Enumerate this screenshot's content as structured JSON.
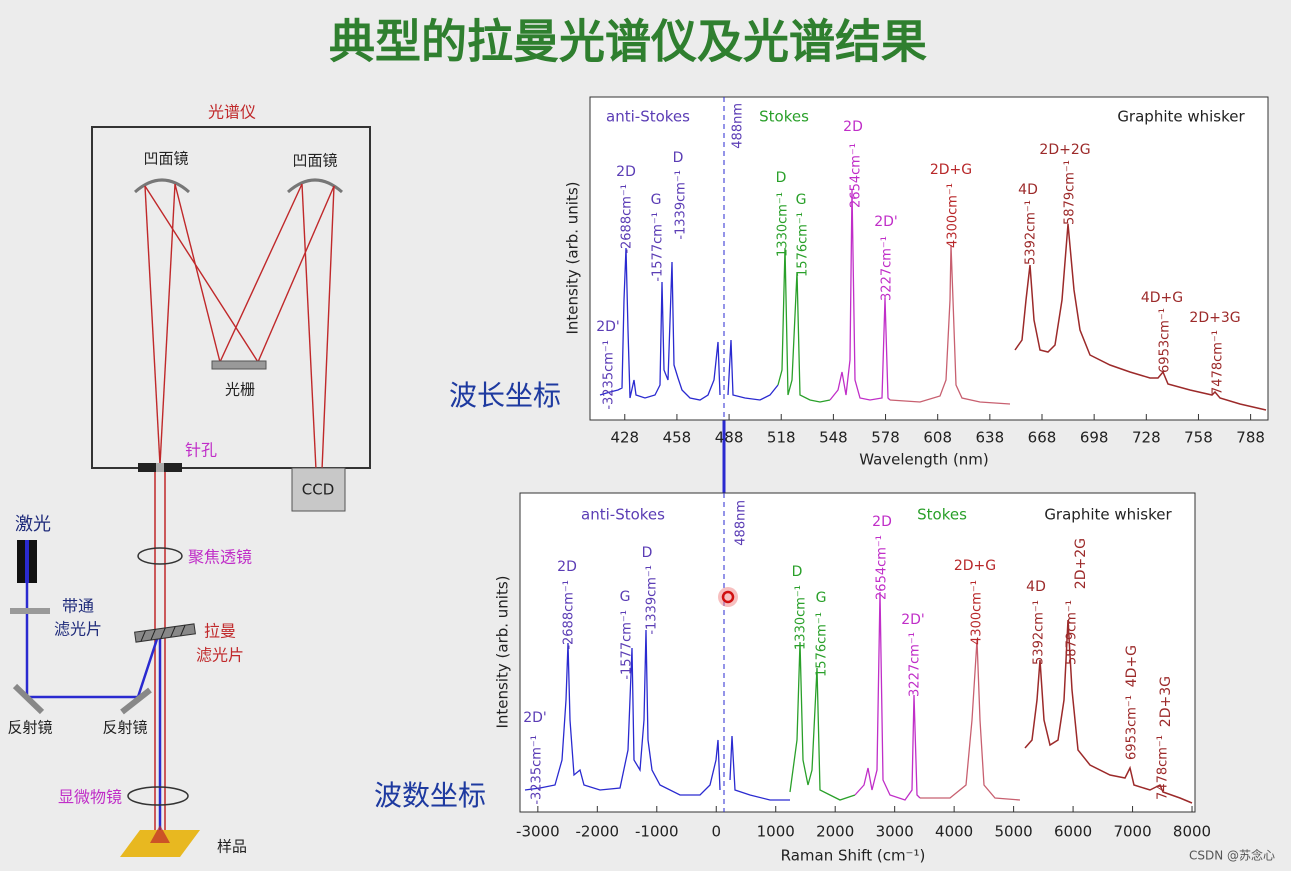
{
  "title": "典型的拉曼光谱仪及光谱结果",
  "setup": {
    "spectrometer": "光谱仪",
    "concave_mirror_left": "凹面镜",
    "concave_mirror_right": "凹面镜",
    "grating": "光栅",
    "pinhole": "针孔",
    "ccd": "CCD",
    "laser": "激光",
    "bandpass_filter": [
      "带通",
      "滤光片"
    ],
    "focusing_lens": "聚焦透镜",
    "raman_filter": [
      "拉曼",
      "滤光片"
    ],
    "mirror_left": "反射镜",
    "mirror_right": "反射镜",
    "objective": "显微物镜",
    "sample": "样品"
  },
  "wavelength_label": "波长坐标",
  "wavenumber_label": "波数坐标",
  "spectra": [
    {
      "xlabel": "Wavelength (nm)",
      "ylabel": "Intensity (arb. units)",
      "xlim": [
        408,
        798
      ],
      "xticks": [
        428,
        458,
        488,
        518,
        548,
        578,
        608,
        638,
        668,
        698,
        728,
        758,
        788
      ],
      "regions": [
        "anti-Stokes",
        "Stokes"
      ],
      "sample": "Graphite whisker",
      "laser_line": "488nm",
      "peaks": [
        {
          "name": "2D'",
          "shift": "-3235cm⁻¹"
        },
        {
          "name": "2D",
          "shift": "-2688cm⁻¹"
        },
        {
          "name": "G",
          "shift": "-1577cm⁻¹"
        },
        {
          "name": "D",
          "shift": "-1339cm⁻¹"
        },
        {
          "name": "D",
          "shift": "1330cm⁻¹"
        },
        {
          "name": "G",
          "shift": "1576cm⁻¹"
        },
        {
          "name": "2D",
          "shift": "2654cm⁻¹"
        },
        {
          "name": "2D'",
          "shift": "3227cm⁻¹"
        },
        {
          "name": "2D+G",
          "shift": "4300cm⁻¹"
        },
        {
          "name": "4D",
          "shift": "5392cm⁻¹"
        },
        {
          "name": "2D+2G",
          "shift": "5879cm⁻¹"
        },
        {
          "name": "4D+G",
          "shift": "6953cm⁻¹"
        },
        {
          "name": "2D+3G",
          "shift": "7478cm⁻¹"
        }
      ]
    },
    {
      "xlabel": "Raman Shift (cm⁻¹)",
      "ylabel": "Intensity (arb. units)",
      "xlim": [
        -3300,
        8050
      ],
      "xticks": [
        -3000,
        -2000,
        -1000,
        0,
        1000,
        2000,
        3000,
        4000,
        5000,
        6000,
        7000,
        8000
      ],
      "regions": [
        "anti-Stokes",
        "Stokes"
      ],
      "sample": "Graphite whisker",
      "laser_line": "488nm",
      "peaks": [
        {
          "name": "2D'",
          "shift": "-3235cm⁻¹"
        },
        {
          "name": "2D",
          "shift": "-2688cm⁻¹"
        },
        {
          "name": "G",
          "shift": "-1577cm⁻¹"
        },
        {
          "name": "D",
          "shift": "-1339cm⁻¹"
        },
        {
          "name": "D",
          "shift": "1330cm⁻¹"
        },
        {
          "name": "G",
          "shift": "1576cm⁻¹"
        },
        {
          "name": "2D",
          "shift": "2654cm⁻¹"
        },
        {
          "name": "2D'",
          "shift": "3227cm⁻¹"
        },
        {
          "name": "2D+G",
          "shift": "4300cm⁻¹"
        },
        {
          "name": "4D",
          "shift": "5392cm⁻¹"
        },
        {
          "name": "2D+2G",
          "shift": "5879cm⁻¹"
        },
        {
          "name": "4D+G",
          "shift": "6953cm⁻¹"
        },
        {
          "name": "2D+3G",
          "shift": "7478cm⁻¹"
        }
      ]
    }
  ],
  "watermark": "CSDN @苏念心"
}
